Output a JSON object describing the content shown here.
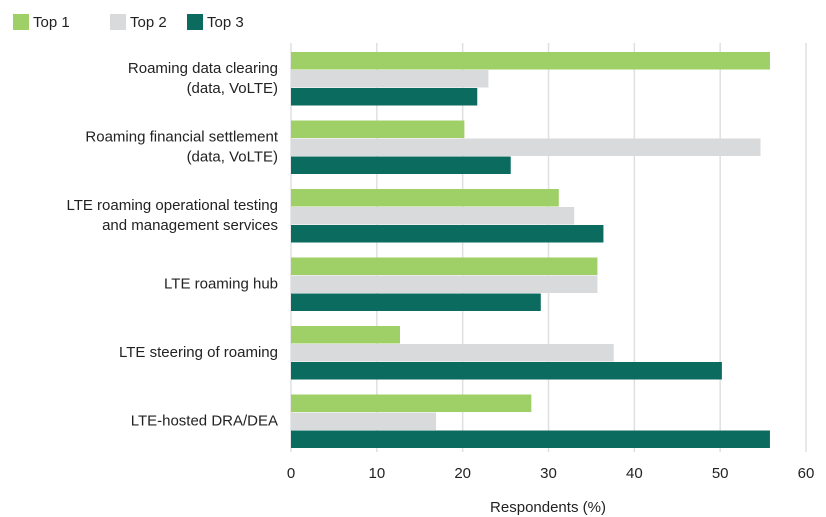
{
  "chart_data": {
    "type": "barh",
    "x_label": "Respondents (%)",
    "categories": [
      [
        "Roaming data clearing",
        "(data, VoLTE)"
      ],
      [
        "Roaming financial settlement",
        "(data, VoLTE)"
      ],
      [
        "LTE roaming operational testing",
        "and management services"
      ],
      [
        "LTE roaming hub"
      ],
      [
        "LTE steering of roaming"
      ],
      [
        "LTE-hosted DRA/DEA"
      ]
    ],
    "series": [
      {
        "name": "Top 1",
        "color": "#9fcf67",
        "values": [
          55.8,
          20.2,
          31.2,
          35.7,
          12.7,
          28.0
        ]
      },
      {
        "name": "Top 2",
        "color": "#d9dadb",
        "values": [
          23.0,
          54.7,
          33.0,
          35.7,
          37.6,
          16.9
        ]
      },
      {
        "name": "Top 3",
        "color": "#0c6b5f",
        "values": [
          21.7,
          25.6,
          36.4,
          29.1,
          50.2,
          55.8
        ]
      }
    ],
    "xlim": [
      0,
      60
    ],
    "xticks": [
      0,
      10,
      20,
      30,
      40,
      50,
      60
    ],
    "grid": true
  }
}
